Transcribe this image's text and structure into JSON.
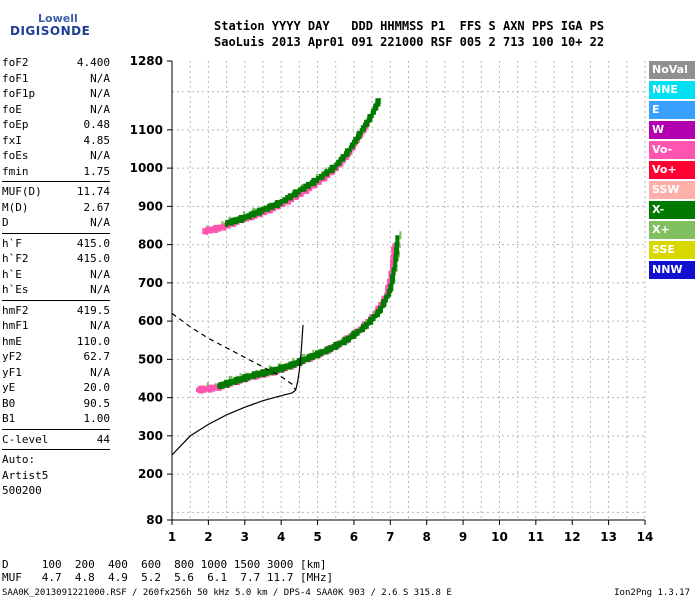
{
  "logo": {
    "line1": "Lowell",
    "line2": "DIGISONDE"
  },
  "header": {
    "line1": "Station YYYY DAY   DDD HHMMSS P1  FFS S AXN PPS IGA PS",
    "line2": "SaoLuis 2013 Apr01 091 221000 RSF 005 2 713 100 10+ 22"
  },
  "params": {
    "group1": [
      {
        "name": "foF2",
        "value": "4.400"
      },
      {
        "name": "foF1",
        "value": "N/A"
      },
      {
        "name": "foF1p",
        "value": "N/A"
      },
      {
        "name": "foE",
        "value": "N/A"
      },
      {
        "name": "foEp",
        "value": "0.48"
      },
      {
        "name": "fxI",
        "value": "4.85"
      },
      {
        "name": "foEs",
        "value": "N/A"
      },
      {
        "name": "fmin",
        "value": "1.75"
      }
    ],
    "group2": [
      {
        "name": "MUF(D)",
        "value": "11.74"
      },
      {
        "name": "M(D)",
        "value": "2.67"
      },
      {
        "name": "D",
        "value": "N/A"
      }
    ],
    "group3": [
      {
        "name": "h`F",
        "value": "415.0"
      },
      {
        "name": "h`F2",
        "value": "415.0"
      },
      {
        "name": "h`E",
        "value": "N/A"
      },
      {
        "name": "h`Es",
        "value": "N/A"
      }
    ],
    "group4": [
      {
        "name": "hmF2",
        "value": "419.5"
      },
      {
        "name": "hmF1",
        "value": "N/A"
      },
      {
        "name": "hmE",
        "value": "110.0"
      },
      {
        "name": "yF2",
        "value": "62.7"
      },
      {
        "name": "yF1",
        "value": "N/A"
      },
      {
        "name": "yE",
        "value": "20.0"
      },
      {
        "name": "B0",
        "value": "90.5"
      },
      {
        "name": "B1",
        "value": "1.00"
      }
    ],
    "group5": [
      {
        "name": "C-level",
        "value": "44"
      }
    ],
    "auto_label": "Auto:",
    "artist": "Artist5",
    "code": "500200"
  },
  "legend": [
    {
      "label": "NoVal",
      "color": "#909090"
    },
    {
      "label": "NNE",
      "color": "#00e0f0"
    },
    {
      "label": "E",
      "color": "#3aa0ff"
    },
    {
      "label": "W",
      "color": "#b000b0"
    },
    {
      "label": "Vo-",
      "color": "#ff55b0"
    },
    {
      "label": "Vo+",
      "color": "#ff0030"
    },
    {
      "label": "SSW",
      "color": "#ffb0a8"
    },
    {
      "label": "X-",
      "color": "#007a00"
    },
    {
      "label": "X+",
      "color": "#80c060"
    },
    {
      "label": "SSE",
      "color": "#d8d800"
    },
    {
      "label": "NNW",
      "color": "#1010d0"
    }
  ],
  "bottom": {
    "d_row": "D     100  200  400  600  800 1000 1500 3000 [km]",
    "muf_row": "MUF   4.7  4.8  4.9  5.2  5.6  6.1  7.7 11.7 [MHz]",
    "footer": "SAA0K_2013091221000.RSF / 260fx256h 50 kHz 5.0 km / DPS-4 SAA0K 903 / 2.6 S 315.8 E",
    "version": "Ion2Png 1.3.17"
  },
  "chart_data": {
    "type": "scatter",
    "xlim": [
      1,
      14
    ],
    "ylim": [
      80,
      1280
    ],
    "xticks": [
      1,
      2,
      3,
      4,
      5,
      6,
      7,
      8,
      9,
      10,
      11,
      12,
      13,
      14
    ],
    "yticks": [
      80,
      200,
      300,
      400,
      500,
      600,
      700,
      800,
      900,
      1000,
      1100,
      1280
    ],
    "grid": true,
    "traces": [
      {
        "name": "O-mode F2 trace",
        "color": "#ff55b0",
        "points": [
          [
            1.7,
            420
          ],
          [
            2.2,
            425
          ],
          [
            2.7,
            440
          ],
          [
            3.2,
            455
          ],
          [
            3.7,
            465
          ],
          [
            4.2,
            480
          ],
          [
            4.7,
            500
          ],
          [
            5.2,
            520
          ],
          [
            5.7,
            545
          ],
          [
            6.2,
            580
          ],
          [
            6.6,
            620
          ],
          [
            6.9,
            670
          ],
          [
            7.05,
            740
          ],
          [
            7.1,
            800
          ]
        ]
      },
      {
        "name": "X-mode F2 trace",
        "color": "#007a00",
        "points": [
          [
            2.3,
            430
          ],
          [
            2.8,
            445
          ],
          [
            3.3,
            460
          ],
          [
            3.8,
            470
          ],
          [
            4.3,
            485
          ],
          [
            4.8,
            505
          ],
          [
            5.3,
            525
          ],
          [
            5.8,
            550
          ],
          [
            6.3,
            585
          ],
          [
            6.7,
            625
          ],
          [
            7.0,
            680
          ],
          [
            7.15,
            760
          ],
          [
            7.2,
            820
          ]
        ]
      },
      {
        "name": "Second hop O-mode",
        "color": "#ff55b0",
        "points": [
          [
            1.9,
            835
          ],
          [
            2.4,
            845
          ],
          [
            2.9,
            865
          ],
          [
            3.4,
            880
          ],
          [
            3.9,
            900
          ],
          [
            4.4,
            925
          ],
          [
            4.9,
            955
          ],
          [
            5.4,
            990
          ],
          [
            5.8,
            1030
          ],
          [
            6.1,
            1075
          ],
          [
            6.4,
            1120
          ]
        ]
      },
      {
        "name": "Second hop X-mode",
        "color": "#007a00",
        "points": [
          [
            2.5,
            855
          ],
          [
            3.0,
            870
          ],
          [
            3.5,
            890
          ],
          [
            4.0,
            910
          ],
          [
            4.5,
            940
          ],
          [
            5.0,
            970
          ],
          [
            5.5,
            1005
          ],
          [
            5.9,
            1050
          ],
          [
            6.2,
            1095
          ],
          [
            6.5,
            1140
          ],
          [
            6.7,
            1180
          ]
        ]
      }
    ],
    "profile": {
      "name": "Electron density profile",
      "color": "#000000",
      "points": [
        [
          1.0,
          250
        ],
        [
          1.5,
          300
        ],
        [
          2.0,
          330
        ],
        [
          2.5,
          355
        ],
        [
          3.0,
          375
        ],
        [
          3.5,
          392
        ],
        [
          4.0,
          405
        ],
        [
          4.3,
          412
        ],
        [
          4.4,
          419.5
        ],
        [
          4.45,
          440
        ],
        [
          4.5,
          470
        ],
        [
          4.55,
          520
        ],
        [
          4.6,
          590
        ]
      ]
    },
    "profile_dashed": {
      "name": "Topside profile extrapolation",
      "color": "#000000",
      "points": [
        [
          1.0,
          620
        ],
        [
          1.5,
          585
        ],
        [
          2.0,
          555
        ],
        [
          2.5,
          530
        ],
        [
          3.0,
          505
        ],
        [
          3.5,
          480
        ],
        [
          4.0,
          455
        ],
        [
          4.3,
          435
        ],
        [
          4.4,
          419.5
        ]
      ]
    }
  }
}
